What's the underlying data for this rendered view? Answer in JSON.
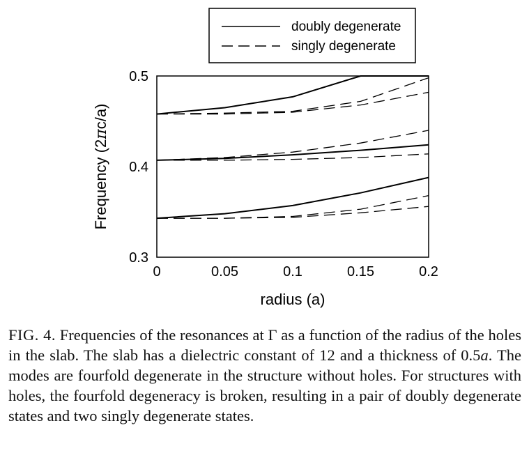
{
  "chart_data": {
    "type": "line",
    "xlabel": "radius (a)",
    "ylabel_prefix": "Frequency (2",
    "ylabel_symbol": "π",
    "ylabel_suffix": "c/a)",
    "xlim": [
      0,
      0.2
    ],
    "ylim": [
      0.3,
      0.5
    ],
    "xticks": [
      0,
      0.05,
      0.1,
      0.15,
      0.2
    ],
    "xtick_labels": [
      "0",
      "0.05",
      "0.1",
      "0.15",
      "0.2"
    ],
    "yticks": [
      0.3,
      0.4,
      0.5
    ],
    "ytick_labels": [
      "0.3",
      "0.4",
      "0.5"
    ],
    "grid": false,
    "legend_position": "top",
    "legend": [
      {
        "label": "doubly degenerate",
        "style": "solid"
      },
      {
        "label": "singly degenerate",
        "style": "dashed"
      }
    ],
    "x": [
      0,
      0.05,
      0.1,
      0.15,
      0.2
    ],
    "series": [
      {
        "style": "solid",
        "values": [
          0.458,
          0.465,
          0.477,
          0.5,
          0.5
        ]
      },
      {
        "style": "dashed",
        "values": [
          0.458,
          0.459,
          0.461,
          0.472,
          0.498
        ]
      },
      {
        "style": "dashed",
        "values": [
          0.458,
          0.458,
          0.46,
          0.468,
          0.482
        ]
      },
      {
        "style": "solid",
        "values": [
          0.407,
          0.409,
          0.413,
          0.418,
          0.424
        ]
      },
      {
        "style": "dashed",
        "values": [
          0.407,
          0.41,
          0.416,
          0.426,
          0.44
        ]
      },
      {
        "style": "dashed",
        "values": [
          0.407,
          0.407,
          0.408,
          0.41,
          0.414
        ]
      },
      {
        "style": "solid",
        "values": [
          0.343,
          0.348,
          0.357,
          0.371,
          0.388
        ]
      },
      {
        "style": "dashed",
        "values": [
          0.343,
          0.343,
          0.345,
          0.353,
          0.368
        ]
      },
      {
        "style": "dashed",
        "values": [
          0.343,
          0.343,
          0.344,
          0.349,
          0.356
        ]
      }
    ]
  },
  "caption": {
    "label": "FIG. 4.",
    "part1": " Frequencies of the resonances at Γ as a function of the radius of the holes in the slab. The slab has a dielectric constant of 12 and a thickness of 0.5",
    "italic_a": "a",
    "part2": ". The modes are fourfold degenerate in the structure without holes. For structures with holes, the fourfold degeneracy is broken, resulting in a pair of doubly degenerate states and two singly degenerate states."
  }
}
